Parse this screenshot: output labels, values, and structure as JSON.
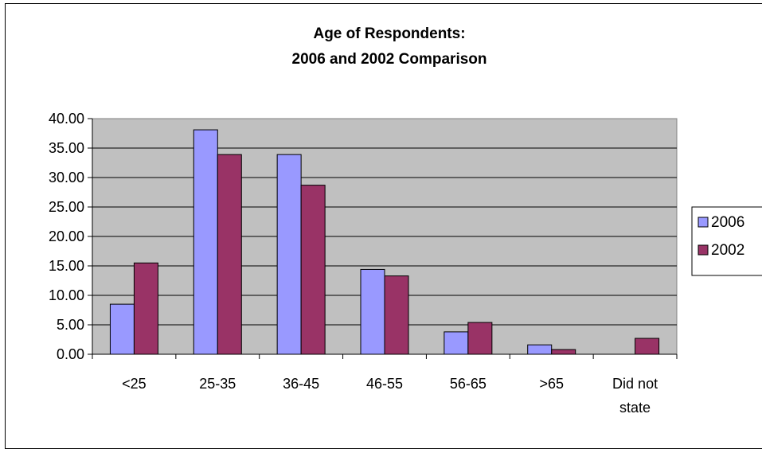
{
  "chart_data": {
    "type": "bar",
    "title_lines": [
      "Age of Respondents:",
      "2006 and 2002 Comparison"
    ],
    "categories": [
      "<25",
      "25-35",
      "36-45",
      "46-55",
      "56-65",
      ">65",
      "Did not state"
    ],
    "category_label_lines": [
      [
        "<25"
      ],
      [
        "25-35"
      ],
      [
        "36-45"
      ],
      [
        "46-55"
      ],
      [
        "56-65"
      ],
      [
        ">65"
      ],
      [
        "Did not",
        "state"
      ]
    ],
    "series": [
      {
        "name": "2006",
        "color": "#9999ff",
        "values": [
          8.5,
          38.1,
          33.9,
          14.4,
          3.8,
          1.6,
          null
        ]
      },
      {
        "name": "2002",
        "color": "#993366",
        "values": [
          15.5,
          33.9,
          28.7,
          13.3,
          5.4,
          0.8,
          2.7
        ]
      }
    ],
    "ylim": [
      0,
      40
    ],
    "yticks": [
      "0.00",
      "5.00",
      "10.00",
      "15.00",
      "20.00",
      "25.00",
      "30.00",
      "35.00",
      "40.00"
    ],
    "plot_background": "#c0c0c0",
    "grid": true,
    "legend_position": "right"
  }
}
